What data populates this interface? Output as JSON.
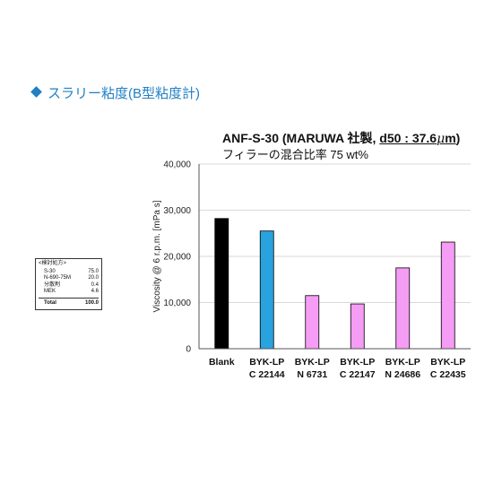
{
  "heading": "スラリー粘度(B型粘度計)",
  "chart_title": {
    "prefix": "ANF-S-30 (MARUWA 社製, ",
    "d50": "d50 : 37.6",
    "mu": "μ",
    "unit": "m",
    "suffix": ")",
    "line2": "フィラーの混合比率 75 wt%"
  },
  "recipe": {
    "title": "<検討処方>",
    "rows": [
      {
        "name": "S-30",
        "value": "75.0"
      },
      {
        "name": "N-690-75M",
        "value": "20.0"
      },
      {
        "name": "分散剤",
        "value": "0.4"
      },
      {
        "name": "MEK",
        "value": "4.6"
      }
    ],
    "total_label": "Total",
    "total_value": "100.0"
  },
  "colors": {
    "accent": "#1f7fc4",
    "blank_bar": "#000000",
    "blue_bar": "#29a3de",
    "pink_bar": "#f59cf5"
  },
  "chart_data": {
    "type": "bar",
    "ylabel": "Viscosity @ 6 r.p.m. [mPa s]",
    "xlabel": "",
    "ylim": [
      0,
      40000
    ],
    "yticks": [
      "0",
      "10,000",
      "20,000",
      "30,000",
      "40,000"
    ],
    "ytick_values": [
      0,
      10000,
      20000,
      30000,
      40000
    ],
    "grid": true,
    "categories": [
      [
        "Blank",
        ""
      ],
      [
        "BYK-LP",
        "C 22144"
      ],
      [
        "BYK-LP",
        "N 6731"
      ],
      [
        "BYK-LP",
        "C 22147"
      ],
      [
        "BYK-LP",
        "N 24686"
      ],
      [
        "BYK-LP",
        "C 22435"
      ]
    ],
    "values": [
      28200,
      25500,
      11500,
      9700,
      17500,
      23100
    ],
    "bar_colors": [
      "#000000",
      "#29a3de",
      "#f59cf5",
      "#f59cf5",
      "#f59cf5",
      "#f59cf5"
    ]
  }
}
